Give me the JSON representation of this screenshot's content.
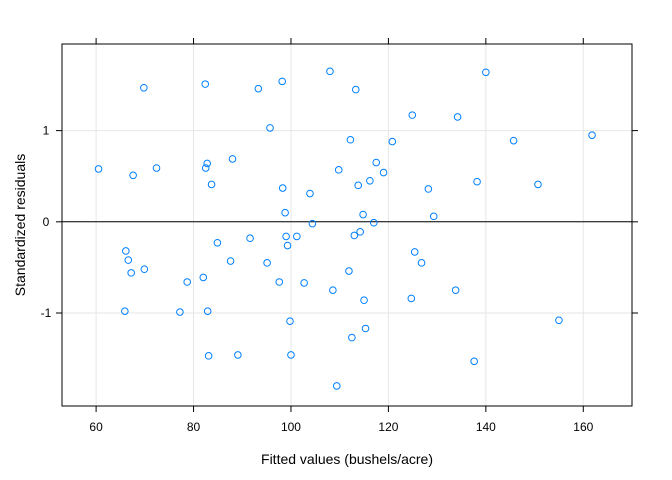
{
  "chart_data": {
    "type": "scatter",
    "title": "",
    "xlabel": "Fitted values (bushels/acre)",
    "ylabel": "Standardized residuals",
    "xlim": [
      53,
      170
    ],
    "ylim": [
      -2.02,
      1.95
    ],
    "x_ticks": [
      60,
      80,
      100,
      120,
      140,
      160
    ],
    "x_tick_labels": [
      "60",
      "80",
      "100",
      "120",
      "140",
      "160"
    ],
    "y_ticks": [
      -1,
      0,
      1
    ],
    "y_tick_labels": [
      "-1",
      "0",
      "1"
    ],
    "grid": true,
    "reference_line_y": 0,
    "point_color": "#0080ff",
    "points": [
      {
        "x": 60.5,
        "y": 0.58
      },
      {
        "x": 65.9,
        "y": -0.98
      },
      {
        "x": 66.1,
        "y": -0.32
      },
      {
        "x": 66.6,
        "y": -0.42
      },
      {
        "x": 67.2,
        "y": -0.56
      },
      {
        "x": 67.6,
        "y": 0.51
      },
      {
        "x": 69.8,
        "y": 1.47
      },
      {
        "x": 69.9,
        "y": -0.52
      },
      {
        "x": 72.4,
        "y": 0.59
      },
      {
        "x": 77.2,
        "y": -0.99
      },
      {
        "x": 78.7,
        "y": -0.66
      },
      {
        "x": 82.0,
        "y": -0.61
      },
      {
        "x": 82.4,
        "y": 1.51
      },
      {
        "x": 82.5,
        "y": 0.59
      },
      {
        "x": 82.8,
        "y": 0.64
      },
      {
        "x": 82.9,
        "y": -0.98
      },
      {
        "x": 83.1,
        "y": -1.47
      },
      {
        "x": 83.7,
        "y": 0.41
      },
      {
        "x": 84.9,
        "y": -0.23
      },
      {
        "x": 87.6,
        "y": -0.43
      },
      {
        "x": 88.0,
        "y": 0.69
      },
      {
        "x": 89.1,
        "y": -1.46
      },
      {
        "x": 91.6,
        "y": -0.18
      },
      {
        "x": 93.3,
        "y": 1.46
      },
      {
        "x": 95.1,
        "y": -0.45
      },
      {
        "x": 95.7,
        "y": 1.03
      },
      {
        "x": 97.6,
        "y": -0.66
      },
      {
        "x": 98.2,
        "y": 1.54
      },
      {
        "x": 98.3,
        "y": 0.37
      },
      {
        "x": 98.8,
        "y": 0.1
      },
      {
        "x": 99.0,
        "y": -0.16
      },
      {
        "x": 99.3,
        "y": -0.26
      },
      {
        "x": 99.8,
        "y": -1.09
      },
      {
        "x": 100.0,
        "y": -1.46
      },
      {
        "x": 101.2,
        "y": -0.16
      },
      {
        "x": 102.7,
        "y": -0.67
      },
      {
        "x": 103.9,
        "y": 0.31
      },
      {
        "x": 104.4,
        "y": -0.02
      },
      {
        "x": 108.0,
        "y": 1.65
      },
      {
        "x": 108.6,
        "y": -0.75
      },
      {
        "x": 109.4,
        "y": -1.8
      },
      {
        "x": 109.8,
        "y": 0.57
      },
      {
        "x": 111.9,
        "y": -0.54
      },
      {
        "x": 112.2,
        "y": 0.9
      },
      {
        "x": 112.5,
        "y": -1.27
      },
      {
        "x": 113.0,
        "y": -0.15
      },
      {
        "x": 113.3,
        "y": 1.45
      },
      {
        "x": 113.8,
        "y": 0.4
      },
      {
        "x": 114.2,
        "y": -0.11
      },
      {
        "x": 114.8,
        "y": 0.08
      },
      {
        "x": 115.0,
        "y": -0.86
      },
      {
        "x": 115.3,
        "y": -1.17
      },
      {
        "x": 116.2,
        "y": 0.45
      },
      {
        "x": 117.0,
        "y": -0.01
      },
      {
        "x": 117.5,
        "y": 0.65
      },
      {
        "x": 119.0,
        "y": 0.54
      },
      {
        "x": 120.8,
        "y": 0.88
      },
      {
        "x": 124.7,
        "y": -0.84
      },
      {
        "x": 124.9,
        "y": 1.17
      },
      {
        "x": 125.4,
        "y": -0.33
      },
      {
        "x": 126.8,
        "y": -0.45
      },
      {
        "x": 128.2,
        "y": 0.36
      },
      {
        "x": 129.3,
        "y": 0.06
      },
      {
        "x": 133.8,
        "y": -0.75
      },
      {
        "x": 134.2,
        "y": 1.15
      },
      {
        "x": 137.6,
        "y": -1.53
      },
      {
        "x": 138.2,
        "y": 0.44
      },
      {
        "x": 140.0,
        "y": 1.64
      },
      {
        "x": 145.7,
        "y": 0.89
      },
      {
        "x": 150.7,
        "y": 0.41
      },
      {
        "x": 155.0,
        "y": -1.08
      },
      {
        "x": 161.8,
        "y": 0.95
      }
    ]
  }
}
